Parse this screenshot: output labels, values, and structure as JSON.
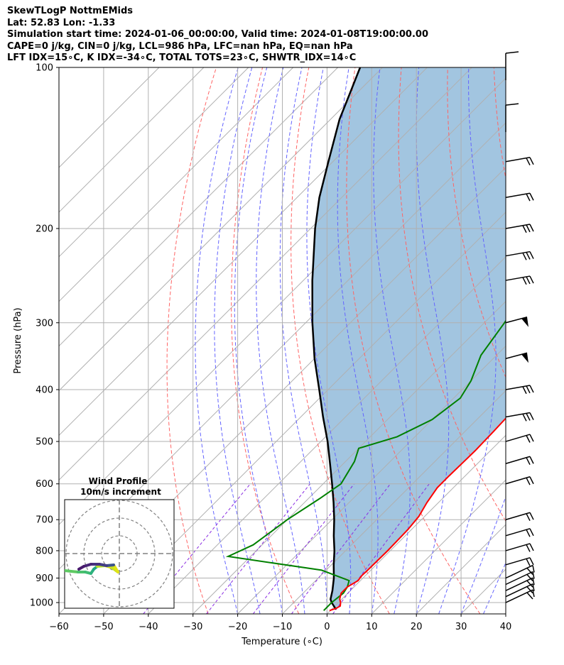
{
  "header": {
    "line1": "SkewTLogP NottmEMids",
    "line2": "Lat: 52.83   Lon: -1.33",
    "line3": "Simulation start time: 2024-01-06_00:00:00, Valid time: 2024-01-08T19:00:00.00",
    "line4": "CAPE=0 j/kg, CIN=0 j/kg, LCL=986 hPa, LFC=nan hPa, EQ=nan hPa",
    "line5": "LFT IDX=15∘C, K IDX=-34∘C, TOTAL TOTS=23∘C, SHWTR_IDX=14∘C"
  },
  "chart_data": {
    "type": "line",
    "chart_kind": "skew-T log-P diagram",
    "xlabel": "Temperature (∘C)",
    "ylabel": "Pressure (hPa)",
    "xlim": [
      -60,
      40
    ],
    "ylim": [
      1050,
      100
    ],
    "y_scale": "log",
    "x_ticks": [
      -60,
      -50,
      -40,
      -30,
      -20,
      -10,
      0,
      10,
      20,
      30,
      40
    ],
    "x_tick_labels": [
      "−60",
      "−50",
      "−40",
      "−30",
      "−20",
      "−10",
      "0",
      "10",
      "20",
      "30",
      "40"
    ],
    "y_ticks": [
      1000,
      900,
      800,
      700,
      600,
      500,
      400,
      300,
      200,
      100
    ],
    "y_tick_labels": [
      "1000",
      "900",
      "800",
      "700",
      "600",
      "500",
      "400",
      "300",
      "200",
      "100"
    ],
    "grid": true,
    "colors": {
      "temperature": "#ff0000",
      "dewpoint": "#008000",
      "parcel": "#000000",
      "cin_fill": "#a2c5e0",
      "dry_adiabat": "#ff6464",
      "moist_adiabat": "#6464ff",
      "mixing_ratio": "#8a2be2",
      "isotherm": "#b0b0b0"
    },
    "series": [
      {
        "role": "temperature",
        "pressure": [
          1035,
          1025,
          1015,
          1000,
          985,
          960,
          935,
          910,
          890,
          870,
          800,
          730,
          690,
          650,
          610,
          580,
          550,
          520,
          480,
          430,
          380,
          330,
          290,
          250,
          225,
          205,
          190,
          175,
          165,
          152,
          135,
          120,
          108,
          100
        ],
        "temperature": [
          -0.2,
          0.8,
          1.2,
          0.5,
          -0.5,
          -1.5,
          -1.5,
          -0.5,
          -0.8,
          -0.7,
          -0.6,
          -0.8,
          -1.3,
          -2.6,
          -3.6,
          -3.6,
          -3.5,
          -3.4,
          -3.6,
          -4.0,
          -5.5,
          -7.2,
          -9.0,
          -10.0,
          -10.3,
          -9.5,
          -7.5,
          -4.5,
          -2.5,
          -1.0,
          0.5,
          2.0,
          5.0,
          6.0
        ]
      },
      {
        "role": "dewpoint",
        "pressure": [
          1035,
          1000,
          960,
          935,
          910,
          870,
          820,
          780,
          700,
          640,
          600,
          545,
          515,
          490,
          455,
          415,
          385,
          345,
          300,
          275,
          250,
          225,
          203,
          185,
          165,
          150,
          135,
          120,
          100
        ],
        "temperature": [
          -1.5,
          -1.5,
          -1.0,
          -1.5,
          -2.5,
          -11.0,
          -35.0,
          -32.0,
          -30.0,
          -27.5,
          -26.0,
          -28.0,
          -30.0,
          -24.0,
          -20.0,
          -18.5,
          -20.0,
          -23.5,
          -25.5,
          -27.0,
          -27.5,
          -26.5,
          -27.0,
          -26.5,
          -26.5,
          -24.0,
          -19.0,
          -13.0,
          -6.0
        ]
      },
      {
        "role": "parcel",
        "pressure": [
          1030,
          1000,
          986,
          950,
          900,
          850,
          800,
          750,
          700,
          650,
          600,
          550,
          500,
          450,
          400,
          350,
          300,
          250,
          200,
          175,
          150,
          125,
          110,
          100
        ],
        "temperature": [
          1.0,
          -1.5,
          -2.5,
          -4.0,
          -6.5,
          -9.5,
          -12.5,
          -16.0,
          -19.5,
          -23.5,
          -28.0,
          -33.0,
          -38.5,
          -45.0,
          -52.0,
          -60.0,
          -68.5,
          -78.0,
          -89.0,
          -95.0,
          -101.0,
          -108.0,
          -112.0,
          -115.0
        ]
      }
    ],
    "wind_barbs": [
      {
        "pressure": 1000,
        "glyph": "barb"
      },
      {
        "pressure": 975,
        "glyph": "barb"
      },
      {
        "pressure": 950,
        "glyph": "barb"
      },
      {
        "pressure": 925,
        "glyph": "barb"
      },
      {
        "pressure": 900,
        "glyph": "barb"
      },
      {
        "pressure": 850,
        "glyph": "barb"
      },
      {
        "pressure": 800,
        "glyph": "barb"
      },
      {
        "pressure": 750,
        "glyph": "barb"
      },
      {
        "pressure": 700,
        "glyph": "barb"
      },
      {
        "pressure": 600,
        "glyph": "barb"
      },
      {
        "pressure": 550,
        "glyph": "barb"
      },
      {
        "pressure": 500,
        "glyph": "barb"
      },
      {
        "pressure": 450,
        "glyph": "barb"
      },
      {
        "pressure": 400,
        "glyph": "barb"
      },
      {
        "pressure": 350,
        "glyph": "pennant"
      },
      {
        "pressure": 300,
        "glyph": "pennant"
      },
      {
        "pressure": 250,
        "glyph": "barb"
      },
      {
        "pressure": 225,
        "glyph": "barb"
      },
      {
        "pressure": 200,
        "glyph": "barb"
      },
      {
        "pressure": 175,
        "glyph": "barb"
      },
      {
        "pressure": 150,
        "glyph": "barb"
      },
      {
        "pressure": 125,
        "glyph": "barb"
      },
      {
        "pressure": 100,
        "glyph": "barb"
      }
    ]
  },
  "inset": {
    "title_line1": "Wind Profile",
    "title_line2": "10m/s increment"
  }
}
